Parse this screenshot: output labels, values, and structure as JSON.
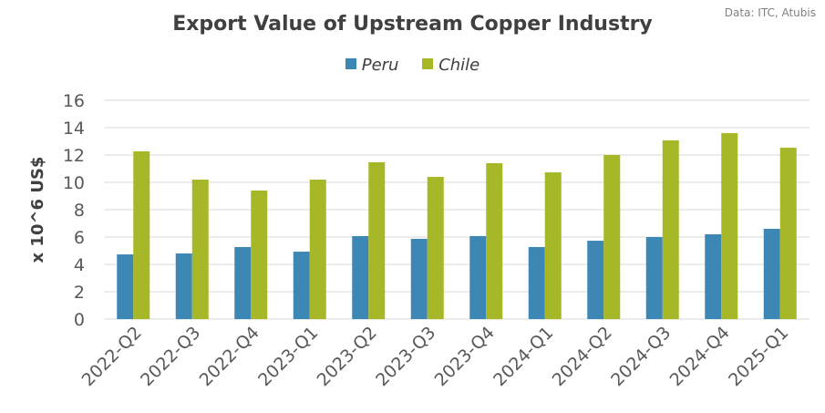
{
  "source": "Data: ITC, Atubis",
  "chart_data": {
    "type": "bar",
    "title": "Export Value of Upstream Copper Industry",
    "xlabel": "",
    "ylabel": "x 10^6 US$",
    "ylim": [
      0,
      16
    ],
    "yticks": [
      0,
      2,
      4,
      6,
      8,
      10,
      12,
      14,
      16
    ],
    "grid": true,
    "legend": "top-center",
    "categories": [
      "2022-Q2",
      "2022-Q3",
      "2022-Q4",
      "2023-Q1",
      "2023-Q2",
      "2023-Q3",
      "2023-Q4",
      "2024-Q1",
      "2024-Q2",
      "2024-Q3",
      "2024-Q4",
      "2025-Q1"
    ],
    "series": [
      {
        "name": "Peru",
        "color": "#3d87b5",
        "values": [
          4.73,
          4.8,
          5.27,
          4.93,
          6.07,
          5.87,
          6.07,
          5.27,
          5.73,
          6.0,
          6.2,
          6.6
        ]
      },
      {
        "name": "Chile",
        "color": "#a6b827",
        "values": [
          12.27,
          10.2,
          9.4,
          10.2,
          11.47,
          10.4,
          11.4,
          10.73,
          12.0,
          13.07,
          13.6,
          12.53
        ]
      }
    ]
  }
}
